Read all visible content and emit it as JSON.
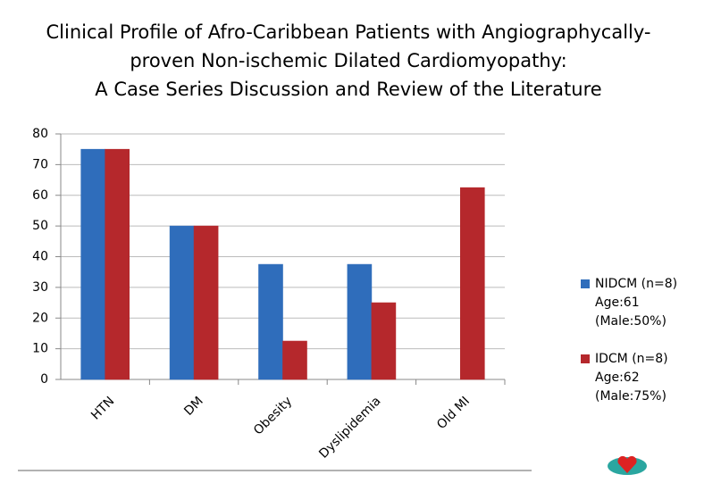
{
  "chart_data": {
    "type": "bar",
    "title": [
      "Clinical Profile of Afro-Caribbean Patients with Angiographycally-",
      "proven Non-ischemic Dilated Cardiomyopathy:",
      "A Case Series Discussion and Review of the Literature"
    ],
    "categories": [
      "HTN",
      "DM",
      "Obesity",
      "Dyslipidemia",
      "Old MI"
    ],
    "series": [
      {
        "name": "NIDCM (n=8)\nAge:61\n(Male:50%)",
        "color": "#2f6dbb",
        "values": [
          75,
          50,
          37.5,
          37.5,
          0
        ]
      },
      {
        "name": "IDCM (n=8)\nAge:62\n(Male:75%)",
        "color": "#b5282c",
        "values": [
          75,
          50,
          12.5,
          25,
          62.5
        ]
      }
    ],
    "ylim": [
      0,
      80
    ],
    "yticks": [
      0,
      10,
      20,
      30,
      40,
      50,
      60,
      70,
      80
    ],
    "grid": true
  }
}
